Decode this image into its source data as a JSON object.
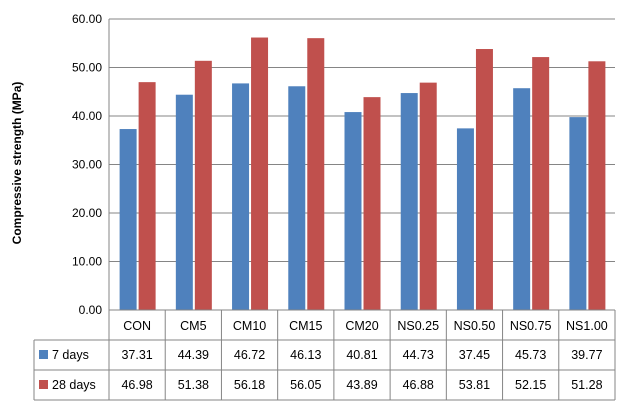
{
  "chart_data": {
    "type": "bar",
    "title": "",
    "xlabel": "",
    "ylabel": "Compressive strength (MPa)",
    "ylim": [
      0,
      60
    ],
    "yticks": [
      "0.00",
      "10.00",
      "20.00",
      "30.00",
      "40.00",
      "50.00",
      "60.00"
    ],
    "grid": true,
    "legend": "data-table",
    "categories": [
      "CON",
      "CM5",
      "CM10",
      "CM15",
      "CM20",
      "NS0.25",
      "NS0.50",
      "NS0.75",
      "NS1.00"
    ],
    "series": [
      {
        "name": "7 days",
        "color": "#4f81bd",
        "values": [
          37.31,
          44.39,
          46.72,
          46.13,
          40.81,
          44.73,
          37.45,
          45.73,
          39.77
        ],
        "labels": [
          "37.31",
          "44.39",
          "46.72",
          "46.13",
          "40.81",
          "44.73",
          "37.45",
          "45.73",
          "39.77"
        ]
      },
      {
        "name": "28 days",
        "color": "#c0504d",
        "values": [
          46.98,
          51.38,
          56.18,
          56.05,
          43.89,
          46.88,
          53.81,
          52.15,
          51.28
        ],
        "labels": [
          "46.98",
          "51.38",
          "56.18",
          "56.05",
          "43.89",
          "46.88",
          "53.81",
          "52.15",
          "51.28"
        ]
      }
    ]
  }
}
